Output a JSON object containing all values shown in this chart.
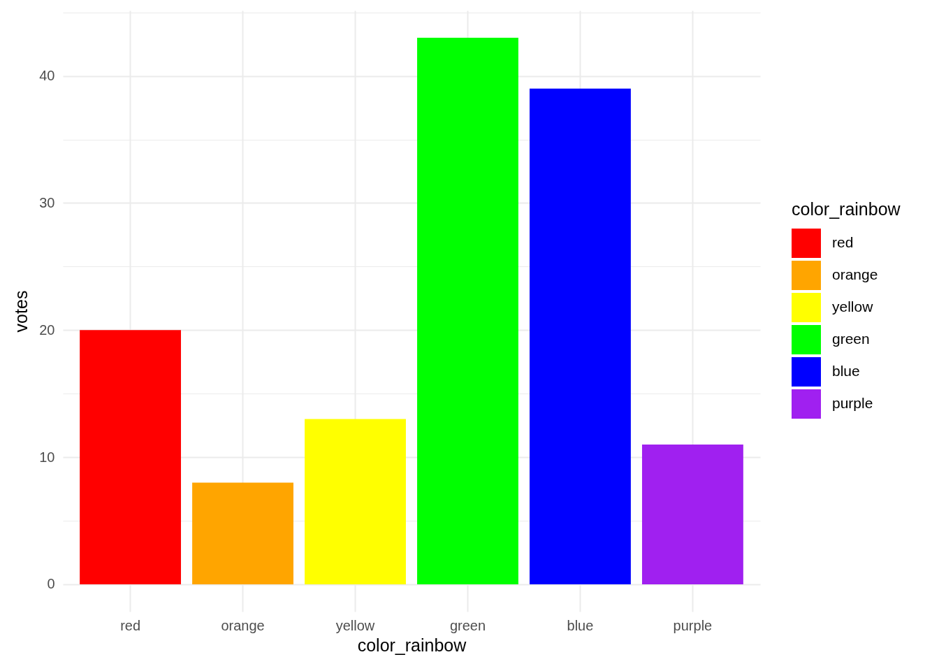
{
  "chart_data": {
    "type": "bar",
    "xlabel": "color_rainbow",
    "ylabel": "votes",
    "legend_title": "color_rainbow",
    "categories": [
      "red",
      "orange",
      "yellow",
      "green",
      "blue",
      "purple"
    ],
    "series": [
      {
        "name": "red",
        "color": "#ff0000",
        "values": [
          20,
          null,
          null,
          null,
          null,
          null
        ]
      },
      {
        "name": "orange",
        "color": "#ffa500",
        "values": [
          null,
          8,
          null,
          null,
          null,
          null
        ]
      },
      {
        "name": "yellow",
        "color": "#ffff00",
        "values": [
          null,
          null,
          13,
          null,
          null,
          null
        ]
      },
      {
        "name": "green",
        "color": "#00ff00",
        "values": [
          null,
          null,
          null,
          43,
          null,
          null
        ]
      },
      {
        "name": "blue",
        "color": "#0000ff",
        "values": [
          null,
          null,
          null,
          null,
          39,
          null
        ]
      },
      {
        "name": "purple",
        "color": "#a020f0",
        "values": [
          null,
          null,
          null,
          null,
          null,
          11
        ]
      }
    ],
    "stacked": true,
    "ylim": [
      -2.15,
      45.15
    ],
    "yticks": [
      0,
      {
        "value": 5,
        "label": null
      },
      10,
      {
        "value": 15,
        "label": null
      },
      20,
      {
        "value": 25,
        "label": null
      },
      30,
      {
        "value": 35,
        "label": null
      },
      40,
      {
        "value": 45,
        "label": null
      }
    ],
    "grid": true,
    "legend": "right"
  }
}
